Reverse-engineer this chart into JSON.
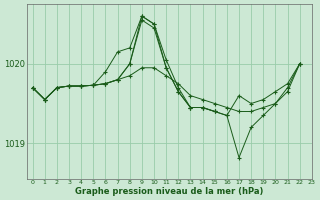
{
  "title": "Graphe pression niveau de la mer (hPa)",
  "background_color": "#cce8d4",
  "grid_color": "#99ccaa",
  "line_color": "#1a5c1a",
  "xlim": [
    -0.5,
    23
  ],
  "ylim": [
    1018.55,
    1020.75
  ],
  "yticks": [
    1019,
    1020
  ],
  "xticks": [
    0,
    1,
    2,
    3,
    4,
    5,
    6,
    7,
    8,
    9,
    10,
    11,
    12,
    13,
    14,
    15,
    16,
    17,
    18,
    19,
    20,
    21,
    22,
    23
  ],
  "series": [
    [
      1019.7,
      1019.55,
      1019.7,
      1019.72,
      1019.72,
      1019.73,
      1019.75,
      1019.8,
      1020.0,
      1020.55,
      1020.45,
      1019.95,
      1019.65,
      1019.45,
      1019.45,
      1019.4,
      1019.35,
      1018.82,
      1019.2,
      1019.35,
      1019.5,
      1019.7,
      1020.0,
      null
    ],
    [
      1019.7,
      1019.55,
      1019.7,
      1019.72,
      1019.72,
      1019.73,
      1019.9,
      1020.15,
      1020.2,
      1020.6,
      1020.5,
      1020.05,
      1019.7,
      1019.45,
      1019.45,
      1019.4,
      null,
      null,
      null,
      null,
      null,
      null,
      null,
      null
    ],
    [
      1019.7,
      1019.55,
      1019.7,
      1019.72,
      1019.72,
      1019.73,
      1019.75,
      1019.8,
      1020.0,
      1020.6,
      1020.5,
      1019.95,
      1019.65,
      1019.45,
      1019.45,
      1019.4,
      1019.35,
      1019.6,
      1019.5,
      1019.55,
      1019.65,
      1019.75,
      1020.0,
      null
    ],
    [
      1019.7,
      1019.55,
      1019.7,
      1019.72,
      1019.72,
      1019.73,
      1019.75,
      1019.8,
      1019.85,
      1019.95,
      1019.95,
      1019.85,
      1019.75,
      1019.6,
      1019.55,
      1019.5,
      1019.45,
      1019.4,
      1019.4,
      1019.45,
      1019.5,
      1019.65,
      1020.0,
      null
    ]
  ]
}
